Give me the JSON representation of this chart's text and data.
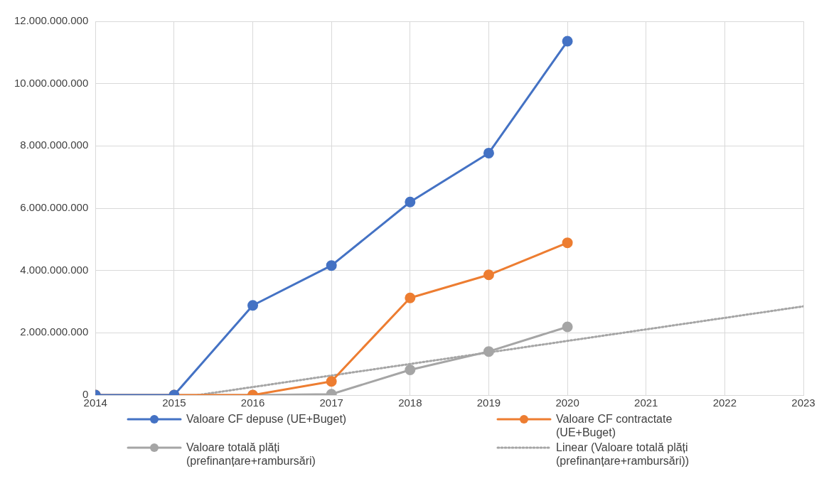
{
  "chart_data": {
    "type": "line",
    "xlim": [
      2014,
      2023
    ],
    "xticks": [
      2014,
      2015,
      2016,
      2017,
      2018,
      2019,
      2020,
      2021,
      2022,
      2023
    ],
    "ylim": [
      0,
      12000000000
    ],
    "yticks": [
      {
        "value": 0,
        "label": "0"
      },
      {
        "value": 2000000000,
        "label": "2.000.000.000"
      },
      {
        "value": 4000000000,
        "label": "4.000.000.000"
      },
      {
        "value": 6000000000,
        "label": "6.000.000.000"
      },
      {
        "value": 8000000000,
        "label": "8.000.000.000"
      },
      {
        "value": 10000000000,
        "label": "10.000.000.000"
      },
      {
        "value": 12000000000,
        "label": "12.000.000.000"
      }
    ],
    "x": [
      2014,
      2015,
      2016,
      2017,
      2018,
      2019,
      2020
    ],
    "series": [
      {
        "name": "Valoare CF depuse (UE+Buget)",
        "color": "#4472c4",
        "values": [
          0,
          0,
          2880000000,
          4160000000,
          6200000000,
          7770000000,
          11360000000
        ]
      },
      {
        "name": "Valoare CF contractate (UE+Buget)",
        "color": "#ed7d31",
        "values": [
          0,
          0,
          0,
          440000000,
          3120000000,
          3860000000,
          4890000000
        ]
      },
      {
        "name": "Valoare totală plăți (prefinanțare+rambursări)",
        "color": "#a5a5a5",
        "values": [
          0,
          0,
          0,
          30000000,
          810000000,
          1400000000,
          2190000000
        ]
      },
      {
        "name": "Linear (Valoare totală plăți (prefinanțare+rambursări))",
        "color": "#a5a5a5",
        "x": [
          2015.3,
          2023
        ],
        "values": [
          0,
          2850000000
        ],
        "marker": "none",
        "line_style": "dotted"
      }
    ],
    "grid": true,
    "legend": "bottom",
    "marker": "circle",
    "line_style": "solid"
  }
}
